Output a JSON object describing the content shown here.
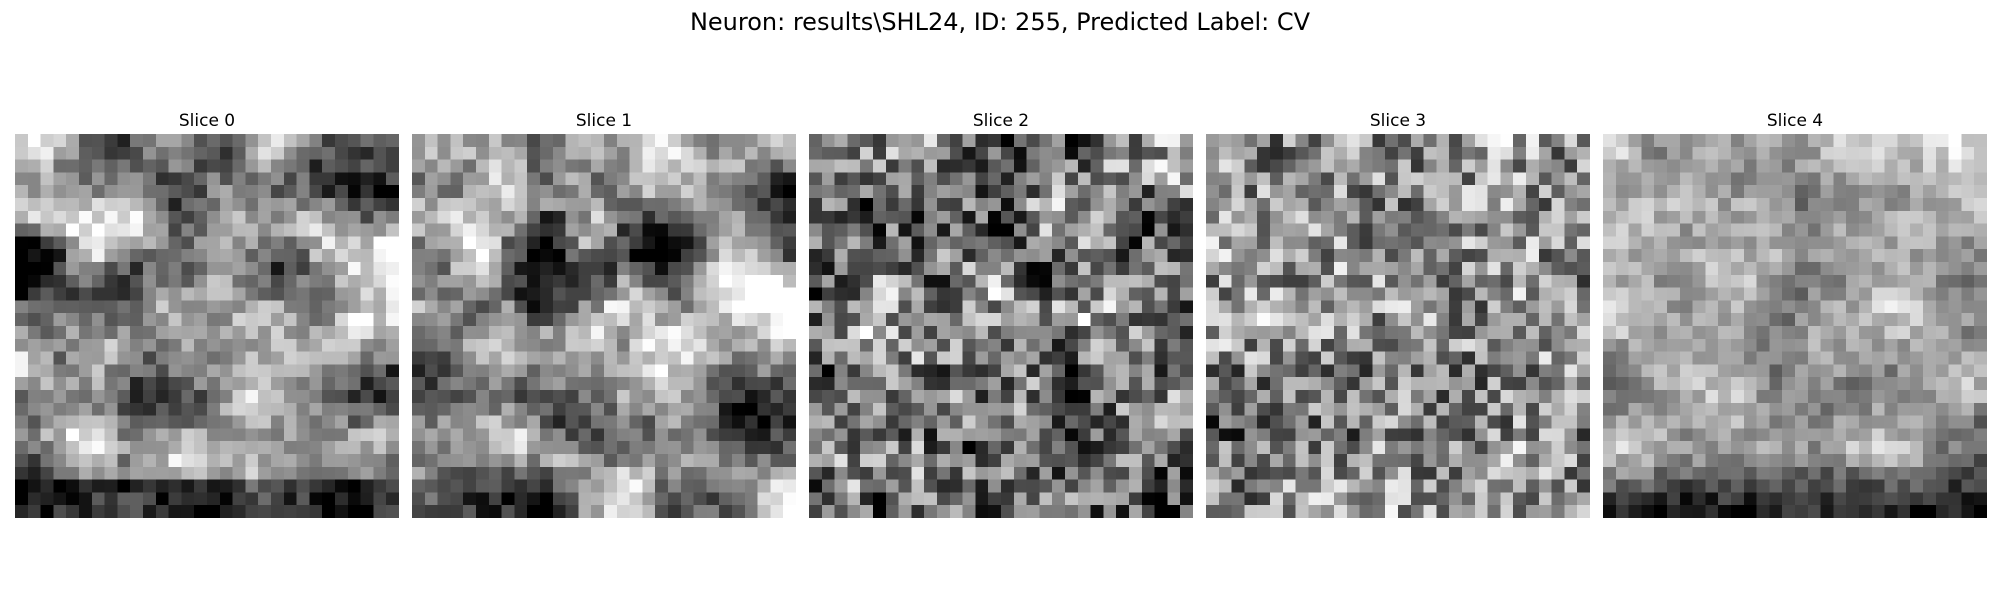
{
  "figure": {
    "title": "Neuron: results\\SHL24, ID: 255, Predicted Label: CV"
  },
  "slices": [
    {
      "title": "Slice 0",
      "profile": "0"
    },
    {
      "title": "Slice 1",
      "profile": "1"
    },
    {
      "title": "Slice 2",
      "profile": "2"
    },
    {
      "title": "Slice 3",
      "profile": "3"
    },
    {
      "title": "Slice 4",
      "profile": "4"
    }
  ],
  "colormap": "gray",
  "grid_size": 30
}
